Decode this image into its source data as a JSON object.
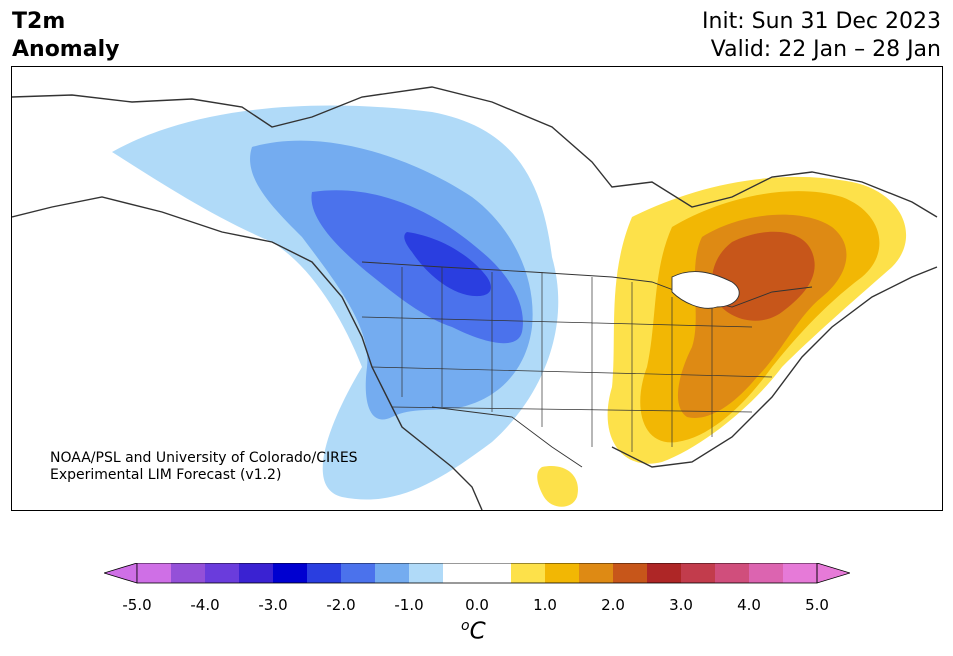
{
  "header": {
    "title_line1": "T2m",
    "title_line2": "Anomaly",
    "init": "Init: Sun 31 Dec 2023",
    "valid": "Valid: 22 Jan – 28 Jan"
  },
  "map": {
    "credit_line1": "NOAA/PSL and University of Colorado/CIRES",
    "credit_line2": "Experimental LIM Forecast (v1.2)",
    "summary": {
      "cold_anomaly_region": "western and northern-plains North America",
      "warm_anomaly_region": "eastern United States and eastern Canada"
    }
  },
  "colorbar": {
    "ticks": [
      "-5.0",
      "-4.0",
      "-3.0",
      "-2.0",
      "-1.0",
      "0.0",
      "1.0",
      "2.0",
      "3.0",
      "4.0",
      "5.0"
    ],
    "unit_base": "C",
    "unit_sup": "o",
    "colors": [
      "#cf6fe6",
      "#9450d8",
      "#6a3cdc",
      "#3a22d2",
      "#0000d0",
      "#2a3ee0",
      "#4b72ec",
      "#74acf0",
      "#b0daf8",
      "#ffffff",
      "#ffffff",
      "#fde14a",
      "#f2b704",
      "#de8a14",
      "#c7561a",
      "#ae2626",
      "#c23c4c",
      "#d04e7c",
      "#dc64b0",
      "#e67ad8"
    ]
  }
}
